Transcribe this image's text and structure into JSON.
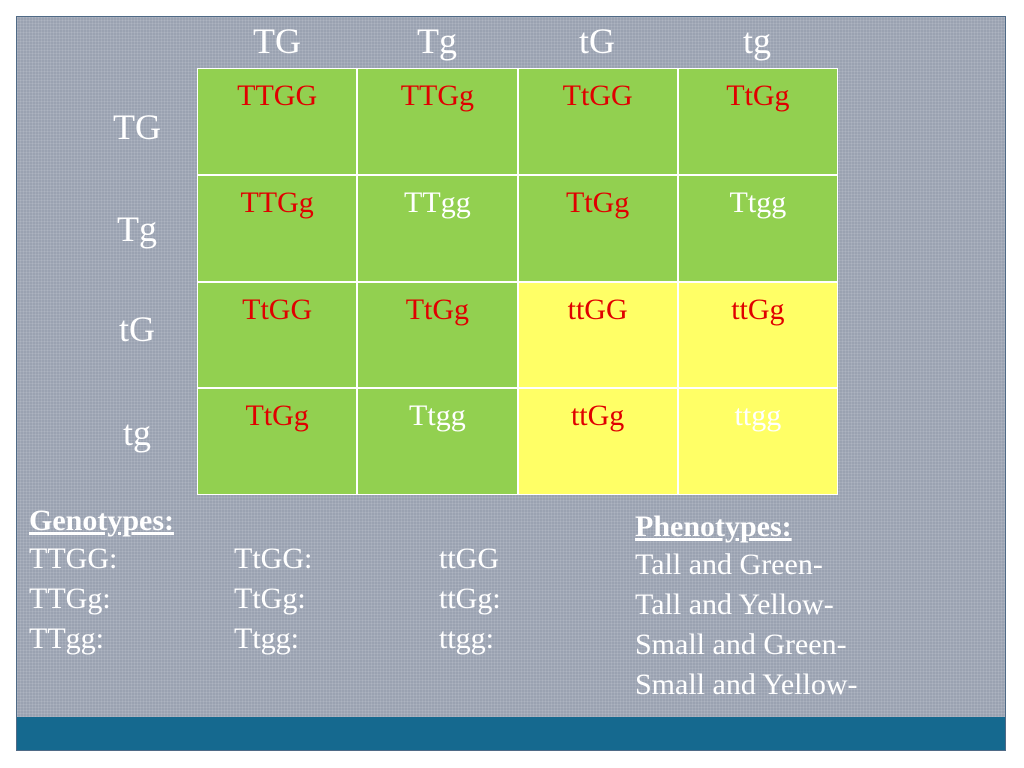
{
  "column_headers": [
    "TG",
    "Tg",
    "tG",
    "tg"
  ],
  "row_headers": [
    "TG",
    "Tg",
    "tG",
    "tg"
  ],
  "colors": {
    "green_cell": "#92d050",
    "yellow_cell": "#ffff66",
    "red_text": "#e00000",
    "footer_bar": "#15698f"
  },
  "punnett": [
    [
      {
        "text": "TTGG",
        "fill": "green",
        "text_color": "red"
      },
      {
        "text": "TTGg",
        "fill": "green",
        "text_color": "red"
      },
      {
        "text": "TtGG",
        "fill": "green",
        "text_color": "red"
      },
      {
        "text": "TtGg",
        "fill": "green",
        "text_color": "red"
      }
    ],
    [
      {
        "text": "TTGg",
        "fill": "green",
        "text_color": "red"
      },
      {
        "text": "TTgg",
        "fill": "green",
        "text_color": "white"
      },
      {
        "text": "TtGg",
        "fill": "green",
        "text_color": "red"
      },
      {
        "text": "Ttgg",
        "fill": "green",
        "text_color": "white"
      }
    ],
    [
      {
        "text": "TtGG",
        "fill": "green",
        "text_color": "red"
      },
      {
        "text": "TtGg",
        "fill": "green",
        "text_color": "red"
      },
      {
        "text": "ttGG",
        "fill": "yellow",
        "text_color": "red"
      },
      {
        "text": "ttGg",
        "fill": "yellow",
        "text_color": "red"
      }
    ],
    [
      {
        "text": "TtGg",
        "fill": "green",
        "text_color": "red"
      },
      {
        "text": "Ttgg",
        "fill": "green",
        "text_color": "white"
      },
      {
        "text": "ttGg",
        "fill": "yellow",
        "text_color": "red"
      },
      {
        "text": "ttgg",
        "fill": "yellow",
        "text_color": "white"
      }
    ]
  ],
  "genotypes": {
    "heading": "Genotypes:",
    "rows": [
      [
        "TTGG:",
        "TtGG:",
        "ttGG"
      ],
      [
        "TTGg:",
        "TtGg:",
        "ttGg:"
      ],
      [
        "TTgg:",
        "Ttgg:",
        "ttgg:"
      ]
    ]
  },
  "phenotypes": {
    "heading": "Phenotypes:",
    "items": [
      "Tall and Green-",
      "Tall and Yellow-",
      "Small and Green-",
      "Small and Yellow-"
    ]
  }
}
